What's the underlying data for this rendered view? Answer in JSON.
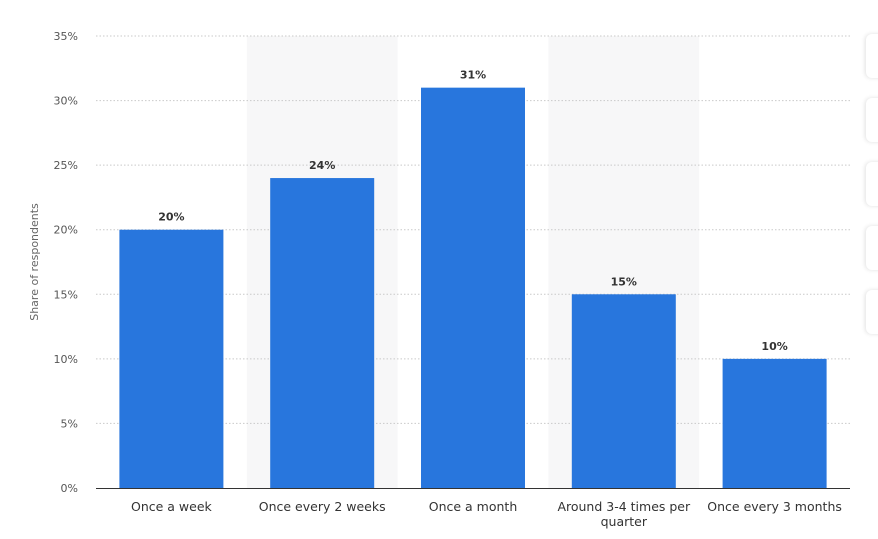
{
  "chart_data": {
    "type": "bar",
    "categories": [
      "Once a week",
      "Once every 2 weeks",
      "Once a month",
      "Around 3-4 times per quarter",
      "Once every 3 months"
    ],
    "category_lines": [
      [
        "Once a week"
      ],
      [
        "Once every 2 weeks"
      ],
      [
        "Once a month"
      ],
      [
        "Around 3-4 times per",
        "quarter"
      ],
      [
        "Once every 3 months"
      ]
    ],
    "values": [
      20,
      24,
      31,
      15,
      10
    ],
    "value_labels": [
      "20%",
      "24%",
      "31%",
      "15%",
      "10%"
    ],
    "ylabel": "Share of respondents",
    "ylim": [
      0,
      35
    ],
    "yticks": [
      0,
      5,
      10,
      15,
      20,
      25,
      30,
      35
    ],
    "ytick_labels": [
      "0%",
      "5%",
      "10%",
      "15%",
      "20%",
      "25%",
      "30%",
      "35%"
    ],
    "grid": true,
    "bar_color": "#2876dd",
    "alt_band_color": "#f7f7f8"
  }
}
